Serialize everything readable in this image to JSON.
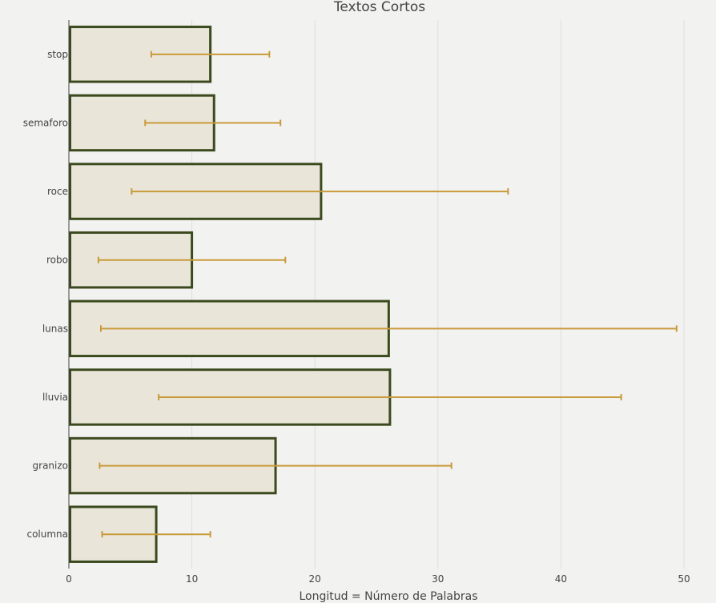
{
  "chart_data": {
    "type": "bar",
    "orientation": "horizontal",
    "title": "Textos Cortos",
    "xlabel": "Longitud = Número de Palabras",
    "ylabel": "",
    "xlim": [
      0,
      50
    ],
    "x_ticks": [
      0,
      10,
      20,
      30,
      40,
      50
    ],
    "grid": true,
    "categories": [
      "stop",
      "semaforo",
      "roce",
      "robo",
      "lunas",
      "lluvia",
      "granizo",
      "columna"
    ],
    "values": [
      11.5,
      11.8,
      20.5,
      10.0,
      26.0,
      26.1,
      16.8,
      7.1
    ],
    "error_low": [
      6.7,
      6.2,
      5.1,
      2.4,
      2.6,
      7.3,
      2.5,
      2.7
    ],
    "error_high": [
      16.3,
      17.2,
      35.7,
      17.6,
      49.4,
      44.9,
      31.1,
      11.5
    ],
    "colors": {
      "bar_fill": "#e9e6d9",
      "bar_stroke": "#3b4a1e",
      "error_bar": "#c99a3a"
    }
  }
}
